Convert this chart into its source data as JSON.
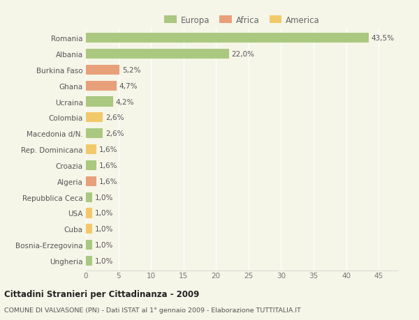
{
  "countries": [
    "Romania",
    "Albania",
    "Burkina Faso",
    "Ghana",
    "Ucraina",
    "Colombia",
    "Macedonia d/N.",
    "Rep. Dominicana",
    "Croazia",
    "Algeria",
    "Repubblica Ceca",
    "USA",
    "Cuba",
    "Bosnia-Erzegovina",
    "Ungheria"
  ],
  "values": [
    43.5,
    22.0,
    5.2,
    4.7,
    4.2,
    2.6,
    2.6,
    1.6,
    1.6,
    1.6,
    1.0,
    1.0,
    1.0,
    1.0,
    1.0
  ],
  "labels": [
    "43,5%",
    "22,0%",
    "5,2%",
    "4,7%",
    "4,2%",
    "2,6%",
    "2,6%",
    "1,6%",
    "1,6%",
    "1,6%",
    "1,0%",
    "1,0%",
    "1,0%",
    "1,0%",
    "1,0%"
  ],
  "continents": [
    "Europa",
    "Europa",
    "Africa",
    "Africa",
    "Europa",
    "America",
    "Europa",
    "America",
    "Europa",
    "Africa",
    "Europa",
    "America",
    "America",
    "Europa",
    "Europa"
  ],
  "colors": {
    "Europa": "#aac87f",
    "Africa": "#e8a07a",
    "America": "#f2c96a"
  },
  "bg_color": "#f5f5e8",
  "title": "Cittadini Stranieri per Cittadinanza - 2009",
  "subtitle": "COMUNE DI VALVASONE (PN) - Dati ISTAT al 1° gennaio 2009 - Elaborazione TUTTITALIA.IT",
  "xlim": [
    0,
    48
  ],
  "xticks": [
    0,
    5,
    10,
    15,
    20,
    25,
    30,
    35,
    40,
    45
  ]
}
